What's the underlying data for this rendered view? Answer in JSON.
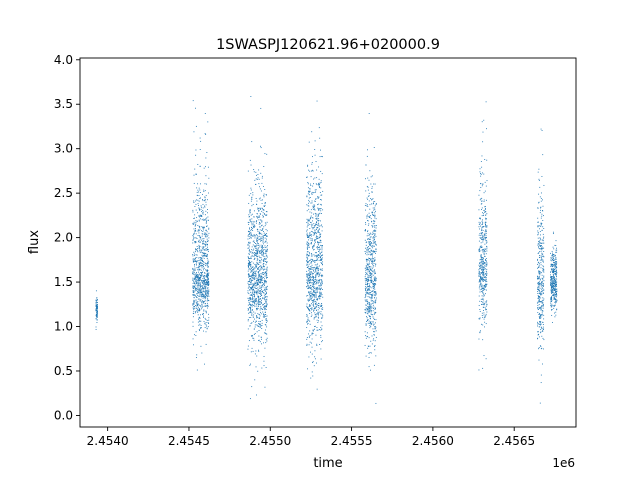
{
  "chart_data": {
    "type": "scatter",
    "title": "1SWASPJ120621.96+020000.9",
    "xlabel": "time",
    "ylabel": "flux",
    "x_offset_label": "1e6",
    "xlim": [
      2453830,
      2456880
    ],
    "ylim": [
      -0.13,
      4.02
    ],
    "x_ticks": [
      2.454,
      2.4545,
      2.455,
      2.4555,
      2.456,
      2.4565
    ],
    "x_tick_labels": [
      "2.4540",
      "2.4545",
      "2.4550",
      "2.4555",
      "2.4560",
      "2.4565"
    ],
    "y_ticks": [
      0.0,
      0.5,
      1.0,
      1.5,
      2.0,
      2.5,
      3.0,
      3.5,
      4.0
    ],
    "y_tick_labels": [
      "0.0",
      "0.5",
      "1.0",
      "1.5",
      "2.0",
      "2.5",
      "3.0",
      "3.5",
      "4.0"
    ],
    "grid": false,
    "legend": "none",
    "marker_color": "#1f77b4",
    "series": [
      {
        "observing_seasons": [
          {
            "x_start": 2453925,
            "x_end": 2453935,
            "flux_median": 1.2,
            "flux_min": 0.9,
            "flux_max": 1.45
          },
          {
            "x_start": 2454520,
            "x_end": 2454620,
            "flux_median": 1.6,
            "flux_min": 0.45,
            "flux_max": 3.7
          },
          {
            "x_start": 2454860,
            "x_end": 2454980,
            "flux_median": 1.6,
            "flux_min": 0.1,
            "flux_max": 3.6
          },
          {
            "x_start": 2455220,
            "x_end": 2455320,
            "flux_median": 1.6,
            "flux_min": 0.05,
            "flux_max": 3.85
          },
          {
            "x_start": 2455580,
            "x_end": 2455650,
            "flux_median": 1.55,
            "flux_min": 0.12,
            "flux_max": 3.45
          },
          {
            "x_start": 2456280,
            "x_end": 2456330,
            "flux_median": 1.7,
            "flux_min": 0.35,
            "flux_max": 3.78
          },
          {
            "x_start": 2456640,
            "x_end": 2456680,
            "flux_median": 1.5,
            "flux_min": 0.1,
            "flux_max": 3.82
          },
          {
            "x_start": 2456720,
            "x_end": 2456760,
            "flux_median": 1.5,
            "flux_min": 0.8,
            "flux_max": 2.3
          }
        ]
      }
    ]
  }
}
